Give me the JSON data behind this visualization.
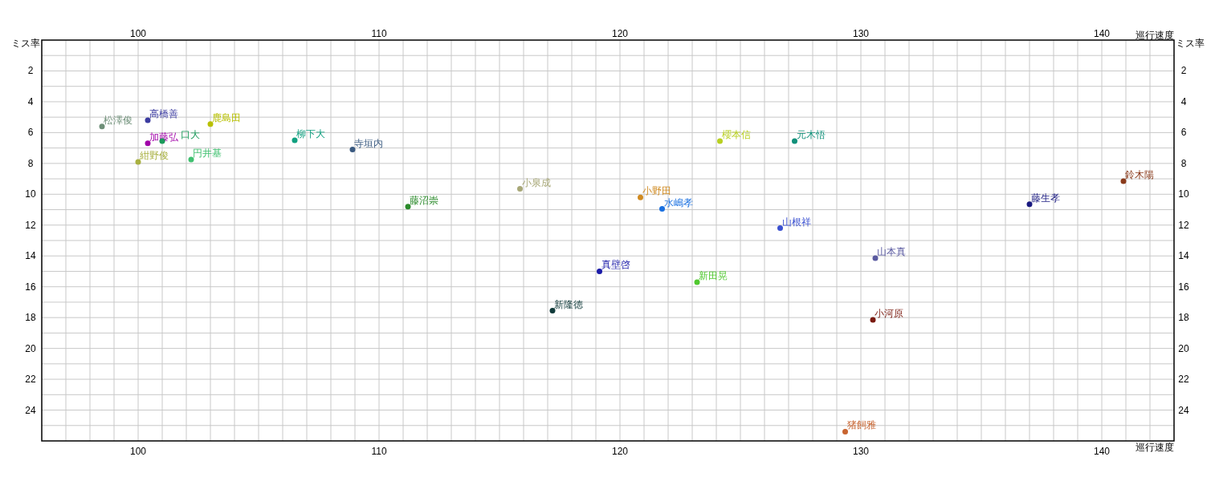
{
  "chart_data": {
    "type": "scatter",
    "xlabel": "巡行速度",
    "ylabel": "ミス率",
    "x2label": "巡行速度",
    "y2label": "ミス率",
    "xlim": [
      96,
      143
    ],
    "x2lim": [
      96,
      143
    ],
    "ylim": [
      26,
      0
    ],
    "y2lim": [
      26,
      0
    ],
    "xticks": [
      {
        "value": 97,
        "label": null
      },
      {
        "value": 98,
        "label": null
      },
      {
        "value": 99,
        "label": null
      },
      100,
      {
        "value": 101,
        "label": null
      },
      {
        "value": 102,
        "label": null
      },
      {
        "value": 103,
        "label": null
      },
      {
        "value": 104,
        "label": null
      },
      {
        "value": 105,
        "label": null
      },
      {
        "value": 106,
        "label": null
      },
      {
        "value": 107,
        "label": null
      },
      {
        "value": 108,
        "label": null
      },
      {
        "value": 109,
        "label": null
      },
      110,
      {
        "value": 111,
        "label": null
      },
      {
        "value": 112,
        "label": null
      },
      {
        "value": 113,
        "label": null
      },
      {
        "value": 114,
        "label": null
      },
      {
        "value": 115,
        "label": null
      },
      {
        "value": 116,
        "label": null
      },
      {
        "value": 117,
        "label": null
      },
      {
        "value": 118,
        "label": null
      },
      {
        "value": 119,
        "label": null
      },
      120,
      {
        "value": 121,
        "label": null
      },
      {
        "value": 122,
        "label": null
      },
      {
        "value": 123,
        "label": null
      },
      {
        "value": 124,
        "label": null
      },
      {
        "value": 125,
        "label": null
      },
      {
        "value": 126,
        "label": null
      },
      {
        "value": 127,
        "label": null
      },
      {
        "value": 128,
        "label": null
      },
      {
        "value": 129,
        "label": null
      },
      130,
      {
        "value": 131,
        "label": null
      },
      {
        "value": 132,
        "label": null
      },
      {
        "value": 133,
        "label": null
      },
      {
        "value": 134,
        "label": null
      },
      {
        "value": 135,
        "label": null
      },
      {
        "value": 136,
        "label": null
      },
      {
        "value": 137,
        "label": null
      },
      {
        "value": 138,
        "label": null
      },
      {
        "value": 139,
        "label": null
      },
      140,
      {
        "value": 141,
        "label": null
      },
      {
        "value": 142,
        "label": null
      }
    ],
    "x2ticks": [
      100,
      110,
      120,
      130,
      140
    ],
    "yticks": [
      {
        "value": 1,
        "label": null
      },
      2,
      {
        "value": 3,
        "label": null
      },
      4,
      {
        "value": 5,
        "label": null
      },
      6,
      {
        "value": 7,
        "label": null
      },
      8,
      {
        "value": 9,
        "label": null
      },
      10,
      {
        "value": 11,
        "label": null
      },
      12,
      {
        "value": 13,
        "label": null
      },
      14,
      {
        "value": 15,
        "label": null
      },
      16,
      {
        "value": 17,
        "label": null
      },
      18,
      {
        "value": 19,
        "label": null
      },
      20,
      {
        "value": 21,
        "label": null
      },
      22,
      {
        "value": 23,
        "label": null
      },
      24,
      {
        "value": 25,
        "label": null
      }
    ],
    "y2ticks": [
      2,
      4,
      6,
      8,
      10,
      12,
      14,
      16,
      18,
      20,
      22,
      24
    ],
    "grid": true,
    "marker": "circle",
    "series": [
      {
        "name": "松澤俊",
        "color": "#6e8f78",
        "x": [
          98.5
        ],
        "values": [
          5.6
        ]
      },
      {
        "name": "高橋善",
        "color": "#3c3ca0",
        "x": [
          100.4
        ],
        "values": [
          5.2
        ]
      },
      {
        "name": "鹿島田",
        "color": "#b8c000",
        "x": [
          103.0
        ],
        "values": [
          5.45
        ]
      },
      {
        "name": "加藤弘",
        "color": "#a000a8",
        "x": [
          100.4
        ],
        "values": [
          6.7
        ]
      },
      {
        "name": "口大",
        "color": "#1a9a5a",
        "x": [
          101.0
        ],
        "values": [
          6.55
        ]
      },
      {
        "name": "円井基",
        "color": "#40c070",
        "x": [
          102.2
        ],
        "values": [
          7.75
        ]
      },
      {
        "name": "紺野俊",
        "color": "#a8b040",
        "x": [
          100.0
        ],
        "values": [
          7.9
        ]
      },
      {
        "name": "柳下大",
        "color": "#10a080",
        "x": [
          106.5
        ],
        "values": [
          6.5
        ]
      },
      {
        "name": "寺垣内",
        "color": "#3a5a80",
        "x": [
          108.9
        ],
        "values": [
          7.1
        ]
      },
      {
        "name": "藤沼崇",
        "color": "#2a8a2a",
        "x": [
          111.2
        ],
        "values": [
          10.8
        ]
      },
      {
        "name": "小泉成",
        "color": "#a8a878",
        "x": [
          115.85
        ],
        "values": [
          9.65
        ]
      },
      {
        "name": "小野田",
        "color": "#d08a20",
        "x": [
          120.85
        ],
        "values": [
          10.2
        ]
      },
      {
        "name": "水嶋孝",
        "color": "#1a70e0",
        "x": [
          121.75
        ],
        "values": [
          10.95
        ]
      },
      {
        "name": "櫻本信",
        "color": "#b8d020",
        "x": [
          124.15
        ],
        "values": [
          6.55
        ]
      },
      {
        "name": "元木悟",
        "color": "#10907a",
        "x": [
          127.25
        ],
        "values": [
          6.55
        ]
      },
      {
        "name": "山根祥",
        "color": "#3a50d0",
        "x": [
          126.65
        ],
        "values": [
          12.2
        ]
      },
      {
        "name": "藤生孝",
        "color": "#1a1a80",
        "x": [
          137.0
        ],
        "values": [
          10.65
        ]
      },
      {
        "name": "鈴木陽",
        "color": "#8a3a1a",
        "x": [
          140.9
        ],
        "values": [
          9.15
        ]
      },
      {
        "name": "山本真",
        "color": "#5a5aa0",
        "x": [
          130.6
        ],
        "values": [
          14.15
        ]
      },
      {
        "name": "真壁啓",
        "color": "#1a1aa8",
        "x": [
          119.15
        ],
        "values": [
          15.0
        ]
      },
      {
        "name": "新田晃",
        "color": "#50c830",
        "x": [
          123.2
        ],
        "values": [
          15.7
        ]
      },
      {
        "name": "新隆徳",
        "color": "#103a3a",
        "x": [
          117.2
        ],
        "values": [
          17.55
        ]
      },
      {
        "name": "小河原",
        "color": "#7a1a10",
        "x": [
          130.5
        ],
        "values": [
          18.15
        ]
      },
      {
        "name": "猪飼雅",
        "color": "#c86430",
        "x": [
          129.35
        ],
        "values": [
          25.4
        ]
      }
    ]
  }
}
